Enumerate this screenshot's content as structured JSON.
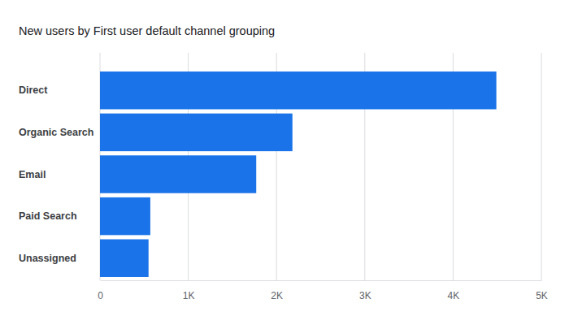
{
  "chart_data": {
    "type": "bar",
    "orientation": "horizontal",
    "title": "New users by First user default channel grouping",
    "categories": [
      "Direct",
      "Organic Search",
      "Email",
      "Paid Search",
      "Unassigned"
    ],
    "values": [
      4490,
      2180,
      1770,
      570,
      550
    ],
    "color": "#1a73e8",
    "xlim": [
      0,
      5000
    ],
    "xticks": [
      0,
      {
        "value": 1000,
        "label": "1K"
      },
      {
        "value": 2000,
        "label": "2K"
      },
      {
        "value": 3000,
        "label": "3K"
      },
      {
        "value": 4000,
        "label": "4K"
      },
      {
        "value": 5000,
        "label": "5K"
      }
    ],
    "grid": true
  }
}
